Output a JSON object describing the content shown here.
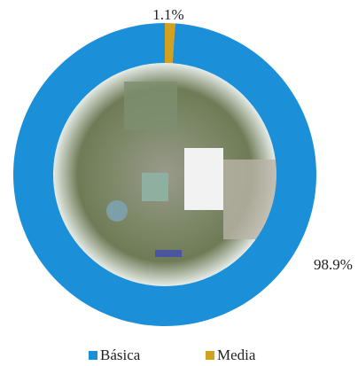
{
  "chart_data": {
    "type": "donut",
    "categories": [
      "Básica",
      "Media"
    ],
    "values": [
      98.9,
      1.1
    ],
    "value_labels": [
      "98.9%",
      "1.1%"
    ],
    "colors": [
      "#1b90d8",
      "#d4a020"
    ],
    "legend": "bottom"
  }
}
